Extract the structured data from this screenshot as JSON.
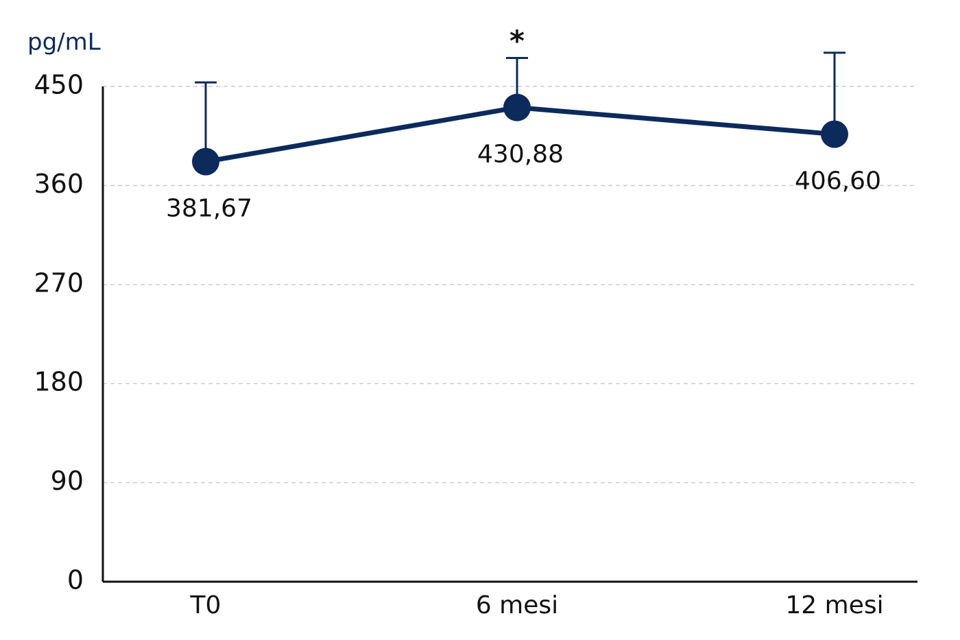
{
  "chart_data": {
    "type": "line",
    "y_label": "pg/mL",
    "annotation": "*",
    "categories": [
      "T0",
      "6 mesi",
      "12 mesi"
    ],
    "series": [
      {
        "color": "#0d2a5c",
        "values": [
          381.67,
          430.88,
          406.6
        ],
        "value_labels": [
          "381,67",
          "430,88",
          "406,60"
        ],
        "errors": [
          72,
          45,
          74
        ]
      }
    ],
    "annotation_category": 1,
    "ylim": [
      0,
      450
    ],
    "yticks": [
      0,
      90,
      180,
      270,
      360,
      450
    ],
    "grid": true
  }
}
